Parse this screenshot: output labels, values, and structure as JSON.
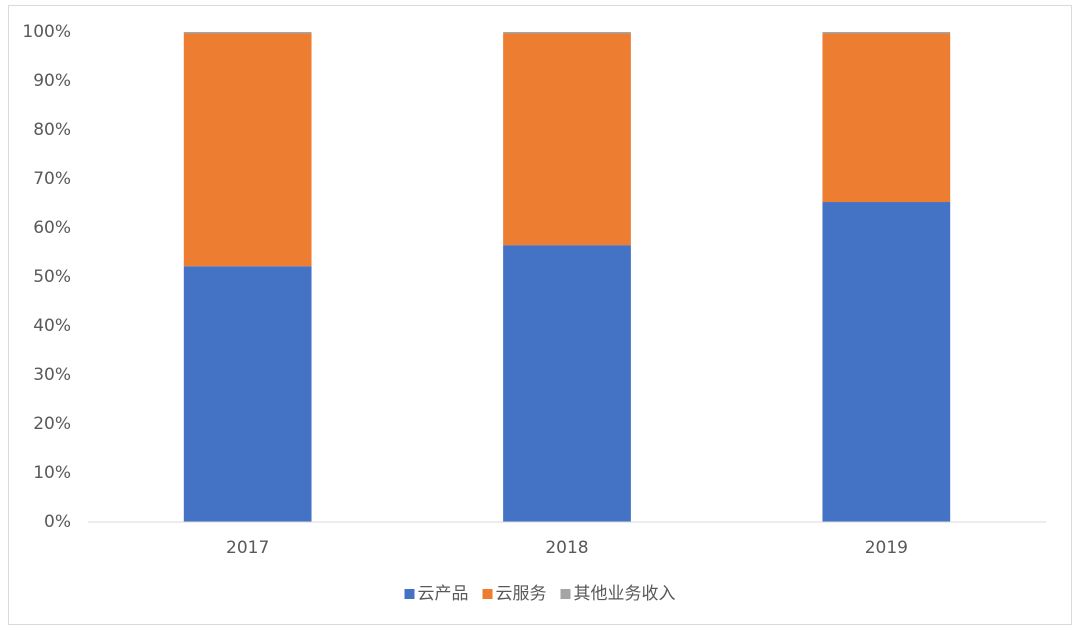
{
  "chart_data": {
    "type": "stacked_bar",
    "categories": [
      "2017",
      "2018",
      "2019"
    ],
    "series": [
      {
        "name": "云产品",
        "color": "#4472c4",
        "values": [
          52.2,
          56.5,
          65.3
        ]
      },
      {
        "name": "云服务",
        "color": "#ed7d31",
        "values": [
          47.5,
          43.2,
          34.4
        ]
      },
      {
        "name": "其他业务收入",
        "color": "#a5a5a5",
        "values": [
          0.3,
          0.3,
          0.3
        ]
      }
    ],
    "ylim": [
      0,
      100
    ],
    "yticks": [
      {
        "value": 0,
        "label": "0%"
      },
      {
        "value": 10,
        "label": "10%"
      },
      {
        "value": 20,
        "label": "20%"
      },
      {
        "value": 30,
        "label": "30%"
      },
      {
        "value": 40,
        "label": "40%"
      },
      {
        "value": 50,
        "label": "50%"
      },
      {
        "value": 60,
        "label": "60%"
      },
      {
        "value": 70,
        "label": "70%"
      },
      {
        "value": 80,
        "label": "80%"
      },
      {
        "value": 90,
        "label": "90%"
      },
      {
        "value": 100,
        "label": "100%"
      }
    ],
    "grid": false,
    "legend": "bottom"
  }
}
